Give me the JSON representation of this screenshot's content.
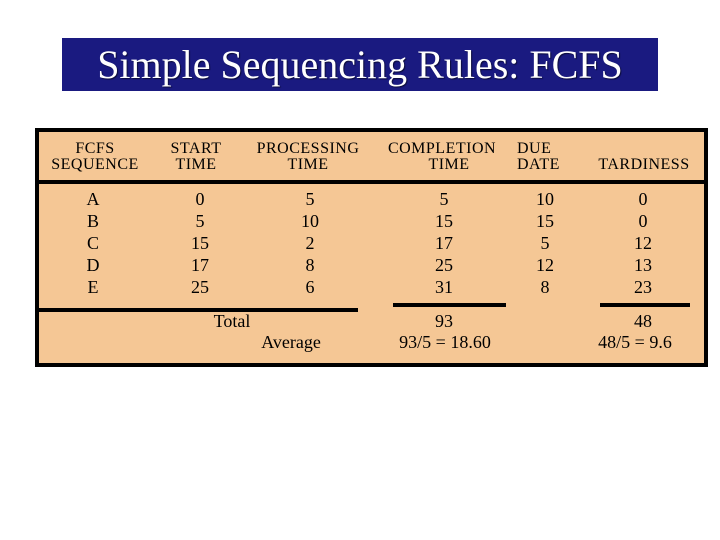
{
  "title_banner": {
    "text": "Simple Sequencing Rules: FCFS"
  },
  "colors": {
    "banner_bg": "#1a1a80",
    "banner_text": "#ffffff",
    "table_bg": "#f5c795",
    "line_color": "#000000",
    "page_bg": "#ffffff"
  },
  "table": {
    "headers": [
      {
        "line1": "FCFS",
        "line2": "SEQUENCE"
      },
      {
        "line1": "START",
        "line2": "TIME"
      },
      {
        "line1": "PROCESSING",
        "line2": "TIME"
      },
      {
        "line1": "COMPLETION",
        "line2": "TIME"
      },
      {
        "line1": "DUE",
        "line2": "DATE"
      },
      {
        "line1": "",
        "line2": "TARDINESS"
      }
    ],
    "rows": [
      {
        "sequence": "A",
        "start_time": "0",
        "processing_time": "5",
        "completion_time": "5",
        "due_date": "10",
        "tardiness": "0"
      },
      {
        "sequence": "B",
        "start_time": "5",
        "processing_time": "10",
        "completion_time": "15",
        "due_date": "15",
        "tardiness": "0"
      },
      {
        "sequence": "C",
        "start_time": "15",
        "processing_time": "2",
        "completion_time": "17",
        "due_date": "5",
        "tardiness": "12"
      },
      {
        "sequence": "D",
        "start_time": "17",
        "processing_time": "8",
        "completion_time": "25",
        "due_date": "12",
        "tardiness": "13"
      },
      {
        "sequence": "E",
        "start_time": "25",
        "processing_time": "6",
        "completion_time": "31",
        "due_date": "8",
        "tardiness": "23"
      }
    ],
    "summary": {
      "total_label": "Total",
      "total_completion": "93",
      "total_tardiness": "48",
      "average_label": "Average",
      "average_completion": "93/5 = 18.60",
      "average_tardiness": "48/5 = 9.6"
    }
  }
}
